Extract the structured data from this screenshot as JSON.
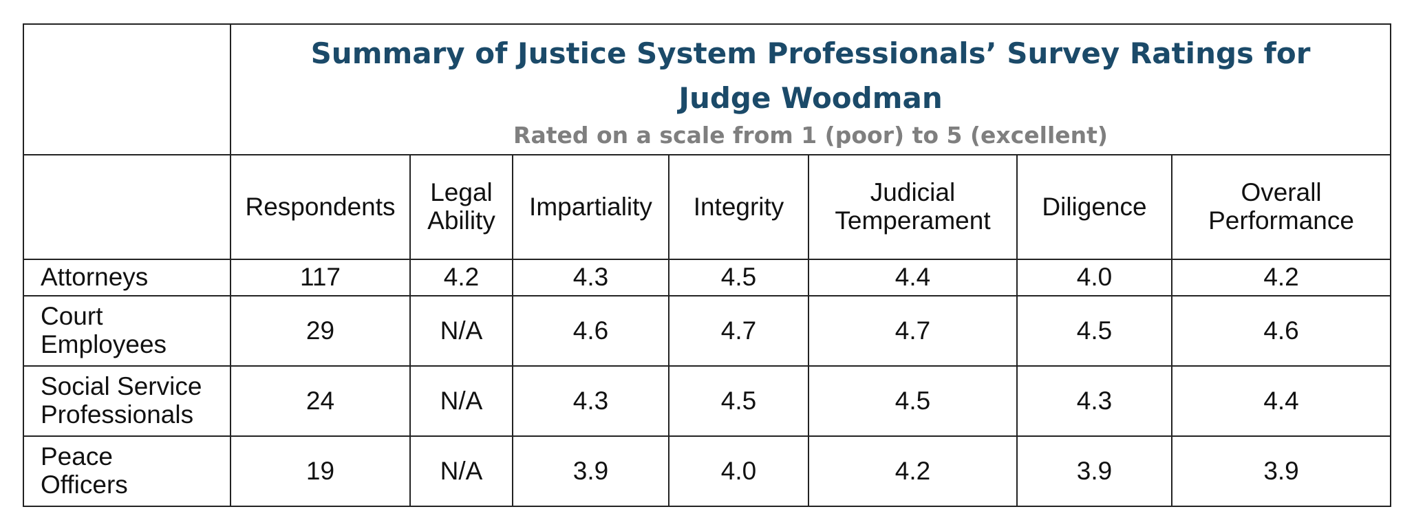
{
  "header": {
    "title_lines": [
      "Summary of Justice System Professionals’ Survey Ratings for",
      "Judge Woodman"
    ],
    "subtitle": "Rated on a scale from 1 (poor) to 5 (excellent)"
  },
  "table": {
    "columns": [
      [
        "Respondents"
      ],
      [
        "Legal",
        "Ability"
      ],
      [
        "Impartiality"
      ],
      [
        "Integrity"
      ],
      [
        "Judicial",
        "Temperament"
      ],
      [
        "Diligence"
      ],
      [
        "Overall",
        "Performance"
      ]
    ],
    "rows": [
      {
        "label": [
          "Attorneys"
        ],
        "cells": [
          "117",
          "4.2",
          "4.3",
          "4.5",
          "4.4",
          "4.0",
          "4.2"
        ]
      },
      {
        "label": [
          "Court",
          "Employees"
        ],
        "cells": [
          "29",
          "N/A",
          "4.6",
          "4.7",
          "4.7",
          "4.5",
          "4.6"
        ]
      },
      {
        "label": [
          "Social Service",
          "Professionals"
        ],
        "cells": [
          "24",
          "N/A",
          "4.3",
          "4.5",
          "4.5",
          "4.3",
          "4.4"
        ]
      },
      {
        "label": [
          "Peace",
          "Officers"
        ],
        "cells": [
          "19",
          "N/A",
          "3.9",
          "4.0",
          "4.2",
          "3.9",
          "3.9"
        ]
      }
    ]
  }
}
